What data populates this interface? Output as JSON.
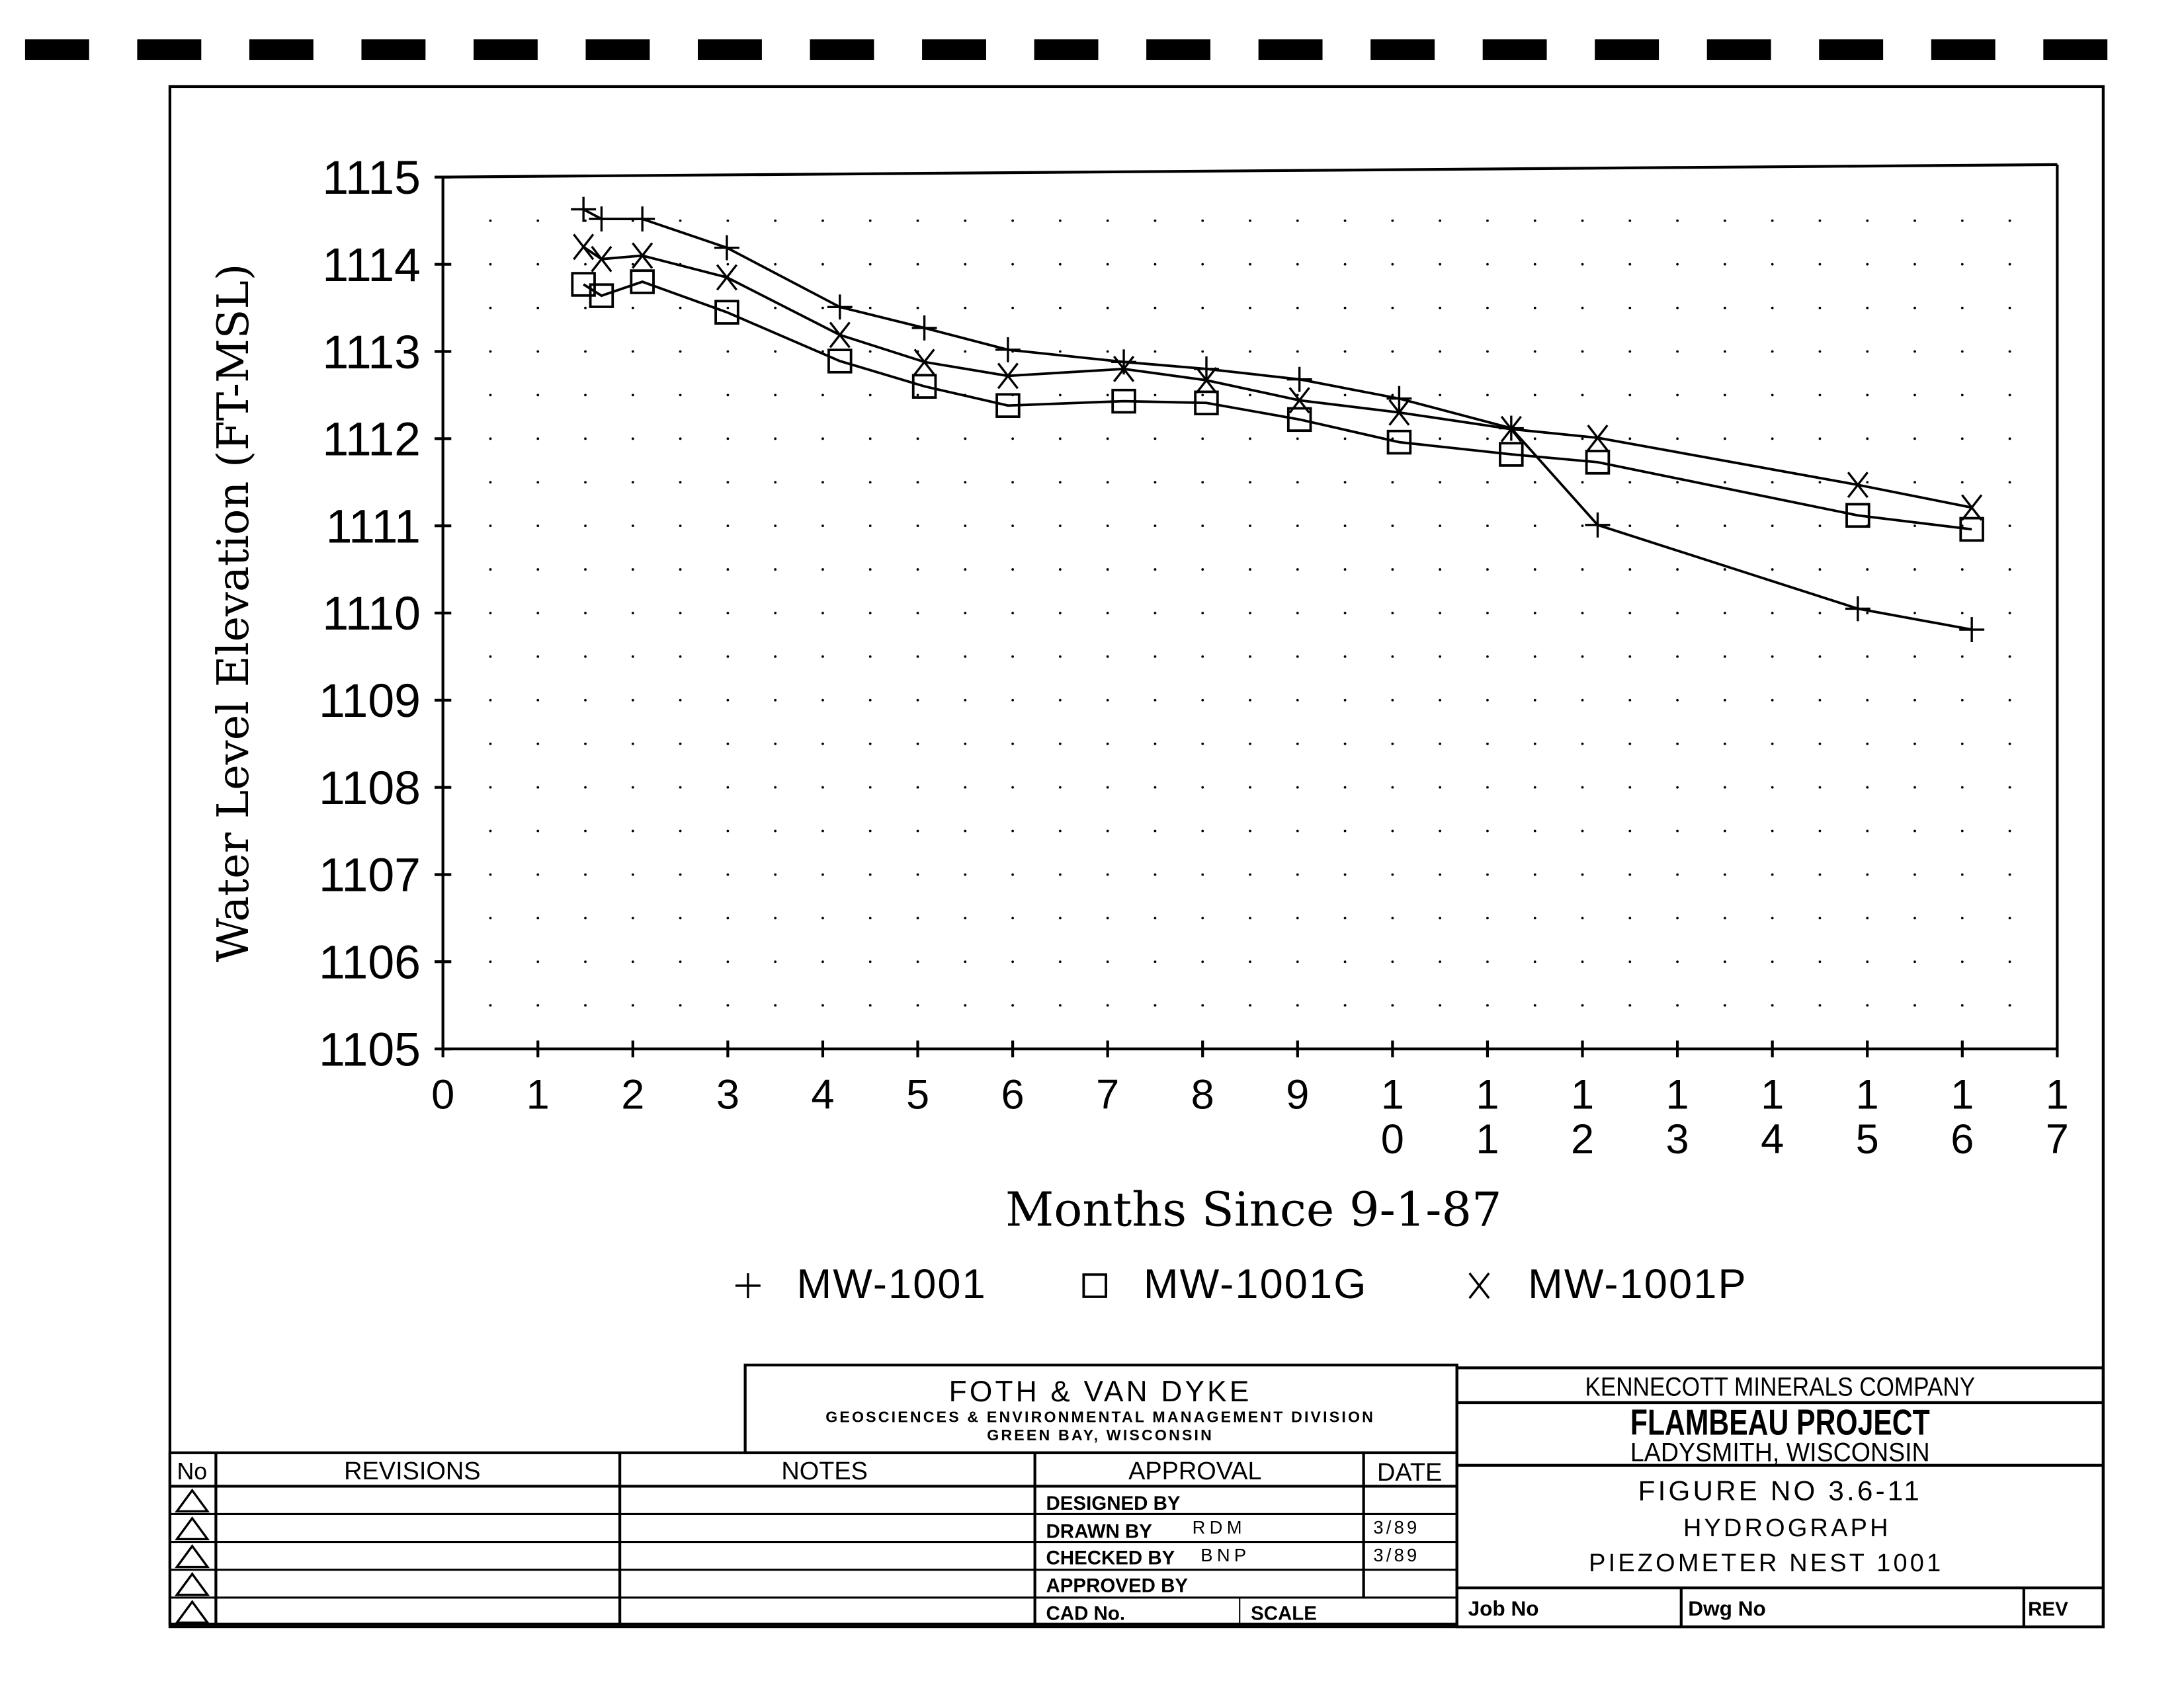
{
  "chart_data": {
    "type": "line",
    "title": "",
    "xlabel": "Months Since 9-1-87",
    "ylabel": "Water Level Elevation (FT-MSL)",
    "xlim": [
      0,
      17
    ],
    "ylim": [
      1105,
      1115
    ],
    "x_ticks": [
      "0",
      "1",
      "2",
      "3",
      "4",
      "5",
      "6",
      "7",
      "8",
      "9",
      "10",
      "11",
      "12",
      "13",
      "14",
      "15",
      "16",
      "17"
    ],
    "y_ticks": [
      "1105",
      "1106",
      "1107",
      "1108",
      "1109",
      "1110",
      "1111",
      "1112",
      "1113",
      "1114",
      "1115"
    ],
    "grid": "dotted",
    "legend_placement": "bottom",
    "series": [
      {
        "name": "MW-1001",
        "marker": "plus",
        "x": [
          1.48,
          1.67,
          2.1,
          2.99,
          4.18,
          5.07,
          5.95,
          7.17,
          8.04,
          9.02,
          10.07,
          11.25,
          12.16,
          14.9,
          16.1
        ],
        "y": [
          1114.63,
          1114.52,
          1114.52,
          1114.19,
          1113.51,
          1113.27,
          1113.02,
          1112.88,
          1112.8,
          1112.68,
          1112.46,
          1112.12,
          1111.01,
          1110.05,
          1109.81
        ]
      },
      {
        "name": "MW-1001G",
        "marker": "square",
        "x": [
          1.48,
          1.67,
          2.1,
          2.99,
          4.18,
          5.07,
          5.95,
          7.17,
          8.04,
          9.02,
          10.07,
          11.25,
          12.16,
          14.9,
          16.1
        ],
        "y": [
          1113.77,
          1113.64,
          1113.8,
          1113.45,
          1112.89,
          1112.6,
          1112.38,
          1112.43,
          1112.41,
          1112.22,
          1111.96,
          1111.82,
          1111.73,
          1111.12,
          1110.96
        ]
      },
      {
        "name": "MW-1001P",
        "marker": "x",
        "x": [
          1.48,
          1.67,
          2.1,
          2.99,
          4.18,
          5.07,
          5.95,
          7.17,
          8.04,
          9.02,
          10.07,
          11.25,
          12.16,
          14.9,
          16.1
        ],
        "y": [
          1114.2,
          1114.06,
          1114.1,
          1113.85,
          1113.19,
          1112.88,
          1112.72,
          1112.8,
          1112.67,
          1112.44,
          1112.3,
          1112.11,
          1112.01,
          1111.47,
          1111.21
        ]
      }
    ]
  },
  "title_block": {
    "firm_name": "FOTH & VAN DYKE",
    "firm_division": "GEOSCIENCES & ENVIRONMENTAL MANAGEMENT DIVISION",
    "firm_location": "GREEN BAY, WISCONSIN",
    "client": "KENNECOTT MINERALS COMPANY",
    "project": "FLAMBEAU PROJECT",
    "project_location": "LADYSMITH, WISCONSIN",
    "figure_no": "FIGURE NO 3.6-11",
    "figure_title": "HYDROGRAPH",
    "figure_subtitle": "PIEZOMETER NEST 1001",
    "job_no_label": "Job No",
    "dwg_no_label": "Dwg No",
    "rev_label": "REV"
  },
  "revisions": {
    "headers": {
      "no": "No",
      "revisions": "REVISIONS",
      "notes": "NOTES",
      "approval": "APPROVAL",
      "date": "DATE"
    },
    "approval_rows": [
      {
        "label": "DESIGNED BY",
        "initials": "",
        "date": ""
      },
      {
        "label": "DRAWN BY",
        "initials": "RDM",
        "date": "3/89"
      },
      {
        "label": "CHECKED BY",
        "initials": "BNP",
        "date": "3/89"
      },
      {
        "label": "APPROVED BY",
        "initials": "",
        "date": ""
      }
    ],
    "cad_no_label": "CAD No.",
    "scale_label": "SCALE"
  }
}
